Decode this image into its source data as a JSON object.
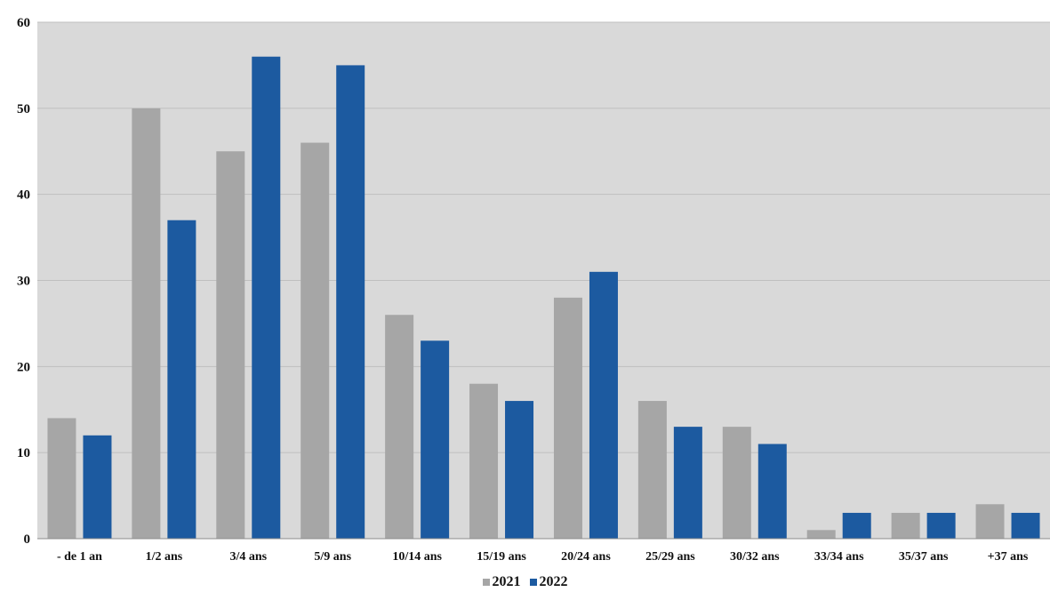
{
  "chart_data": {
    "type": "bar",
    "categories": [
      "- de 1 an",
      "1/2 ans",
      "3/4 ans",
      "5/9 ans",
      "10/14 ans",
      "15/19 ans",
      "20/24 ans",
      "25/29 ans",
      "30/32 ans",
      "33/34 ans",
      "35/37 ans",
      "+37 ans"
    ],
    "series": [
      {
        "name": "2021",
        "color": "#a6a6a6",
        "values": [
          14,
          50,
          45,
          46,
          26,
          18,
          28,
          16,
          13,
          1,
          3,
          4
        ]
      },
      {
        "name": "2022",
        "color": "#1c5aa0",
        "values": [
          12,
          37,
          56,
          55,
          23,
          16,
          31,
          13,
          11,
          3,
          3,
          3
        ]
      }
    ],
    "yticks": [
      "0",
      "10",
      "20",
      "30",
      "40",
      "50",
      "60"
    ],
    "ylim": [
      0,
      60
    ],
    "grid": true,
    "legend_position": "bottom",
    "plot_background": "#d9d9d9"
  }
}
